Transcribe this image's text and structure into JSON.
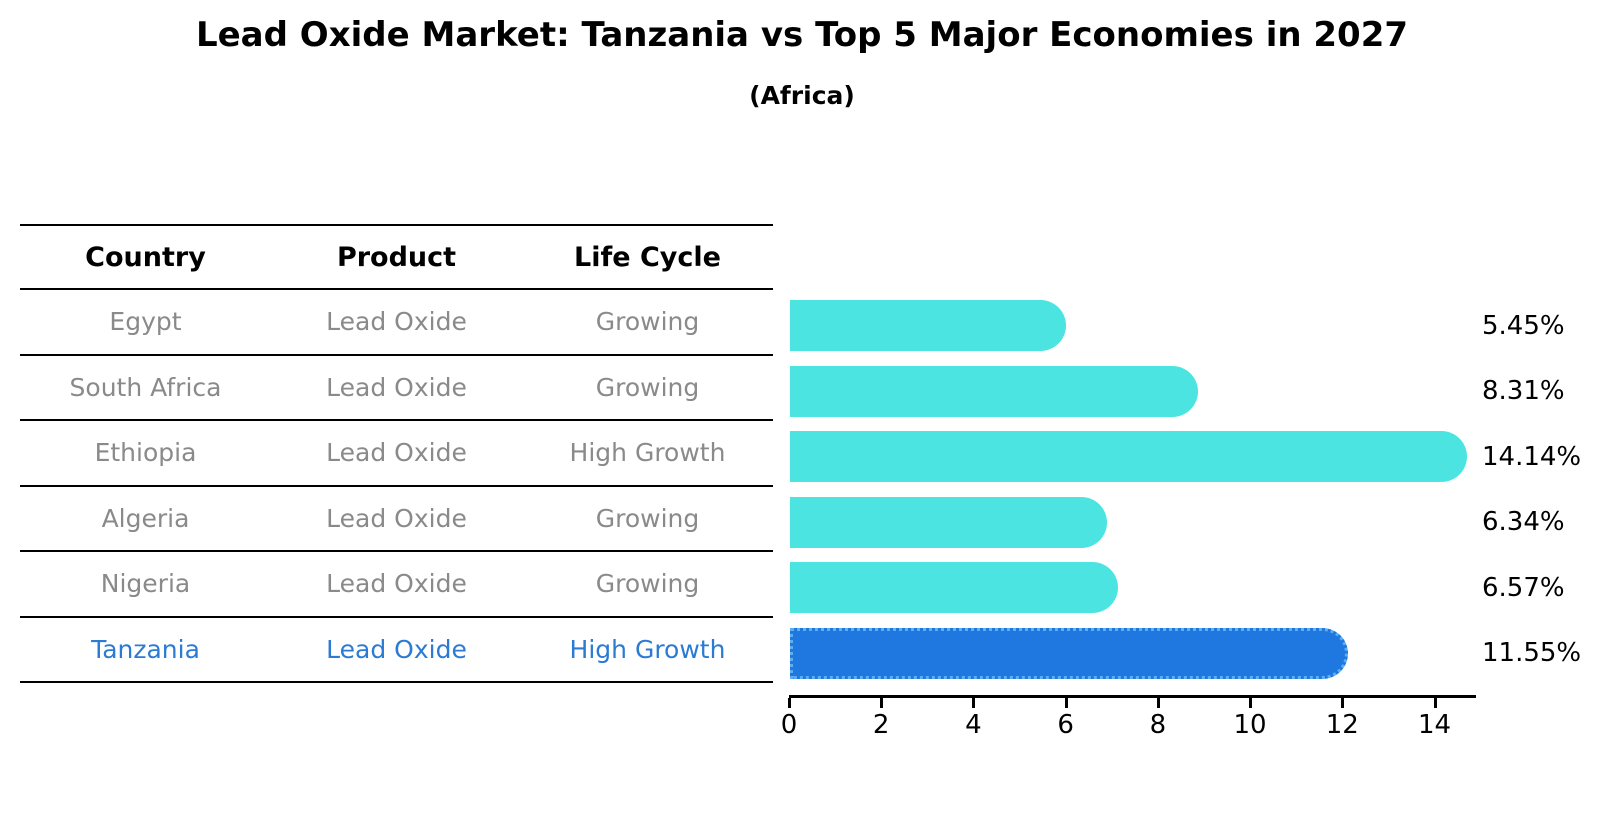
{
  "title": "Lead Oxide Market: Tanzania vs Top 5 Major Economies in 2027",
  "subtitle": "(Africa)",
  "table": {
    "headers": [
      "Country",
      "Product",
      "Life Cycle"
    ],
    "rows": [
      {
        "country": "Egypt",
        "product": "Lead Oxide",
        "life_cycle": "Growing",
        "highlight": false
      },
      {
        "country": "South Africa",
        "product": "Lead Oxide",
        "life_cycle": "Growing",
        "highlight": false
      },
      {
        "country": "Ethiopia",
        "product": "Lead Oxide",
        "life_cycle": "High Growth",
        "highlight": false
      },
      {
        "country": "Algeria",
        "product": "Lead Oxide",
        "life_cycle": "Growing",
        "highlight": false
      },
      {
        "country": "Nigeria",
        "product": "Lead Oxide",
        "life_cycle": "Growing",
        "highlight": false
      },
      {
        "country": "Tanzania",
        "product": "Lead Oxide",
        "life_cycle": "High Growth",
        "highlight": true
      }
    ]
  },
  "chart_data": {
    "type": "bar",
    "orientation": "horizontal",
    "title": "Lead Oxide Market: Tanzania vs Top 5 Major Economies in 2027 (Africa)",
    "categories": [
      "Egypt",
      "South Africa",
      "Ethiopia",
      "Algeria",
      "Nigeria",
      "Tanzania"
    ],
    "values": [
      5.45,
      8.31,
      14.14,
      6.34,
      6.57,
      11.55
    ],
    "value_labels": [
      "5.45%",
      "8.31%",
      "14.14%",
      "6.34%",
      "6.57%",
      "11.55%"
    ],
    "xlabel": "",
    "ylabel": "",
    "xlim": [
      0,
      14.9
    ],
    "xticks": [
      0,
      2,
      4,
      6,
      8,
      10,
      12,
      14
    ],
    "grid": false,
    "legend": false,
    "highlight_index": 5,
    "bar_color": "#4be4e1",
    "highlight_color": "#1e78e0",
    "highlight_border_color": "#5faef2"
  },
  "colors": {
    "text_default": "#000000",
    "text_muted": "#8a8a8a",
    "highlight_text": "#2b7bd4",
    "axis": "#000000",
    "background": "#ffffff"
  }
}
